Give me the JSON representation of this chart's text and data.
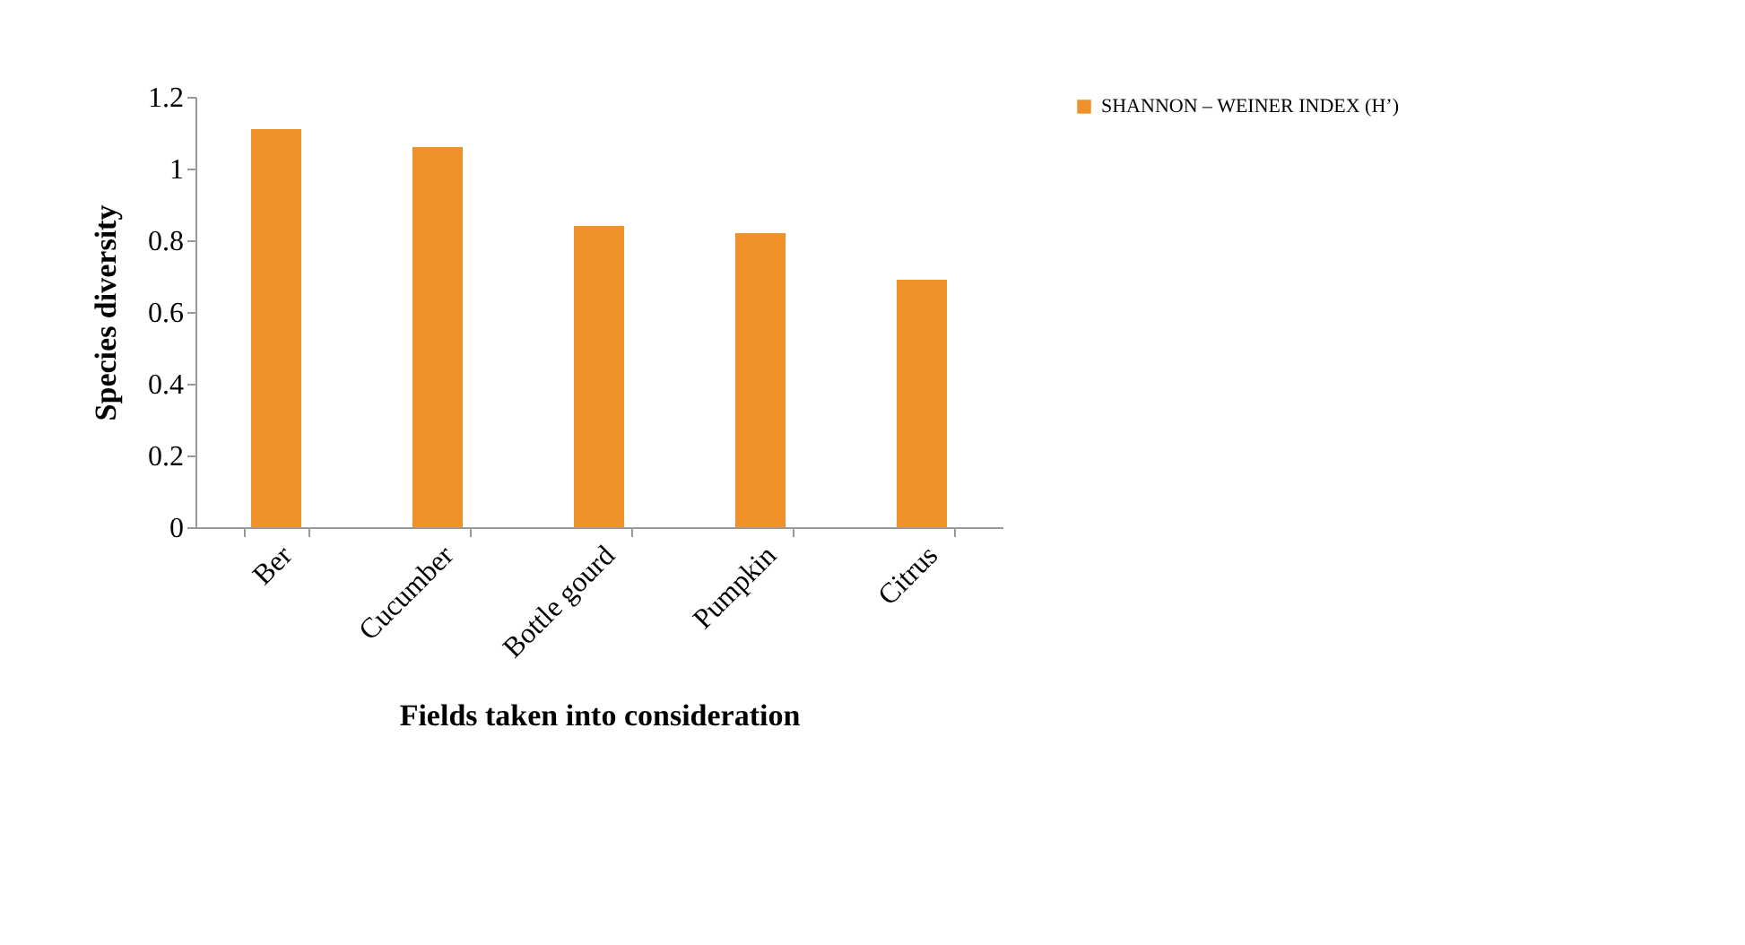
{
  "chart_data": {
    "type": "bar",
    "xlabel": "Fields taken into consideration",
    "ylabel": "Species diversity",
    "categories": [
      "Ber",
      "Cucumber",
      "Bottle gourd",
      "Pumpkin",
      "Citrus"
    ],
    "series": [
      {
        "name": "SHANNON – WEINER INDEX (H’)",
        "color": "#f0912a",
        "values": [
          1.11,
          1.06,
          0.84,
          0.82,
          0.69
        ]
      }
    ],
    "ylim": [
      0,
      1.2
    ],
    "yticks": [
      0,
      0.2,
      0.4,
      0.6,
      0.8,
      1,
      1.2
    ],
    "grid": false,
    "legend": "right"
  }
}
